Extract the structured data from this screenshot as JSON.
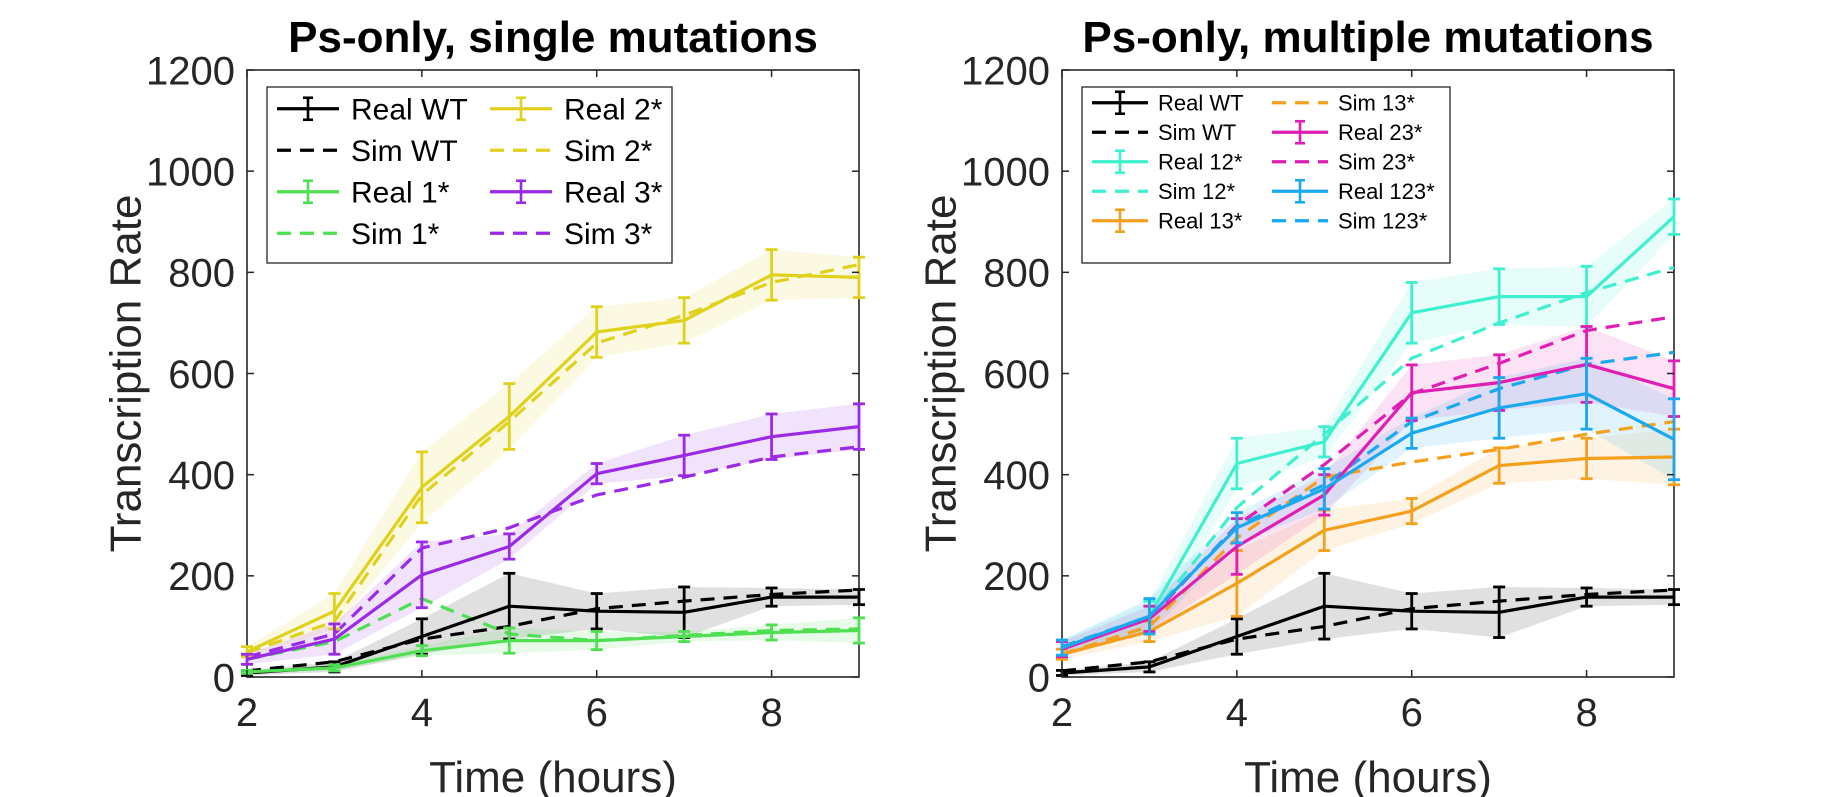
{
  "chart_data": [
    {
      "type": "line",
      "title": "Ps-only, single mutations",
      "xlabel": "Time (hours)",
      "ylabel": "Transcription Rate",
      "xlim": [
        2,
        9
      ],
      "ylim": [
        0,
        1200
      ],
      "xticks": [
        "2",
        "4",
        "6",
        "8"
      ],
      "yticks": [
        "0",
        "200",
        "400",
        "600",
        "800",
        "1000",
        "1200"
      ],
      "grid": false,
      "legend": {
        "placement": "top-left",
        "columns": 2
      },
      "series": [
        {
          "name": "Real WT",
          "kind": "real",
          "color": "#000000",
          "x": [
            2,
            3,
            4,
            5,
            6,
            7,
            8,
            9
          ],
          "y": [
            8,
            20,
            80,
            140,
            130,
            128,
            158,
            158
          ],
          "err": [
            5,
            10,
            35,
            65,
            35,
            50,
            18,
            15
          ]
        },
        {
          "name": "Sim WT",
          "kind": "sim",
          "color": "#000000",
          "x": [
            2,
            3,
            4,
            5,
            6,
            7,
            8,
            9
          ],
          "y": [
            12,
            30,
            75,
            100,
            135,
            150,
            163,
            172
          ]
        },
        {
          "name": "Real 1*",
          "kind": "real",
          "color": "#4fe052",
          "x": [
            2,
            3,
            4,
            5,
            6,
            7,
            8,
            9
          ],
          "y": [
            10,
            18,
            52,
            72,
            72,
            80,
            88,
            92
          ],
          "err": [
            3,
            6,
            10,
            25,
            18,
            10,
            15,
            25
          ]
        },
        {
          "name": "Sim 1*",
          "kind": "sim",
          "color": "#4fe052",
          "x": [
            2,
            3,
            4,
            5,
            6,
            7,
            8,
            9
          ],
          "y": [
            35,
            70,
            155,
            85,
            72,
            82,
            92,
            95
          ]
        },
        {
          "name": "Real 2*",
          "kind": "real",
          "color": "#e0d11c",
          "x": [
            2,
            3,
            4,
            5,
            6,
            7,
            8,
            9
          ],
          "y": [
            50,
            130,
            375,
            515,
            682,
            705,
            795,
            790
          ],
          "err": [
            10,
            35,
            70,
            65,
            50,
            45,
            50,
            40
          ]
        },
        {
          "name": "Sim 2*",
          "kind": "sim",
          "color": "#e0d11c",
          "x": [
            2,
            3,
            4,
            5,
            6,
            7,
            8,
            9
          ],
          "y": [
            48,
            110,
            360,
            505,
            660,
            715,
            780,
            815
          ]
        },
        {
          "name": "Real 3*",
          "kind": "real",
          "color": "#9a2ae6",
          "x": [
            2,
            3,
            4,
            5,
            6,
            7,
            8,
            9
          ],
          "y": [
            35,
            75,
            202,
            258,
            402,
            438,
            475,
            495
          ],
          "err": [
            10,
            30,
            65,
            25,
            20,
            40,
            45,
            45
          ]
        },
        {
          "name": "Sim 3*",
          "kind": "sim",
          "color": "#9a2ae6",
          "x": [
            2,
            3,
            4,
            5,
            6,
            7,
            8,
            9
          ],
          "y": [
            40,
            85,
            255,
            295,
            360,
            395,
            435,
            455
          ]
        }
      ]
    },
    {
      "type": "line",
      "title": "Ps-only, multiple mutations",
      "xlabel": "Time (hours)",
      "ylabel": "Transcription Rate",
      "xlim": [
        2,
        9
      ],
      "ylim": [
        0,
        1200
      ],
      "xticks": [
        "2",
        "4",
        "6",
        "8"
      ],
      "yticks": [
        "0",
        "200",
        "400",
        "600",
        "800",
        "1000",
        "1200"
      ],
      "grid": false,
      "legend": {
        "placement": "top-left",
        "columns": 2
      },
      "series": [
        {
          "name": "Real WT",
          "kind": "real",
          "color": "#000000",
          "x": [
            2,
            3,
            4,
            5,
            6,
            7,
            8,
            9
          ],
          "y": [
            8,
            20,
            80,
            140,
            130,
            128,
            158,
            158
          ],
          "err": [
            5,
            10,
            35,
            65,
            35,
            50,
            18,
            15
          ]
        },
        {
          "name": "Sim WT",
          "kind": "sim",
          "color": "#000000",
          "x": [
            2,
            3,
            4,
            5,
            6,
            7,
            8,
            9
          ],
          "y": [
            12,
            30,
            75,
            100,
            135,
            150,
            163,
            172
          ]
        },
        {
          "name": "Real 12*",
          "kind": "real",
          "color": "#3ff0d0",
          "x": [
            2,
            3,
            4,
            5,
            6,
            7,
            8,
            9
          ],
          "y": [
            58,
            120,
            422,
            465,
            720,
            752,
            752,
            910
          ],
          "err": [
            15,
            30,
            50,
            30,
            60,
            55,
            60,
            35
          ]
        },
        {
          "name": "Sim 12*",
          "kind": "sim",
          "color": "#3ff0d0",
          "x": [
            2,
            3,
            4,
            5,
            6,
            7,
            8,
            9
          ],
          "y": [
            60,
            115,
            335,
            480,
            630,
            700,
            760,
            810
          ]
        },
        {
          "name": "Real 13*",
          "kind": "real",
          "color": "#f5a01c",
          "x": [
            2,
            3,
            4,
            5,
            6,
            7,
            8,
            9
          ],
          "y": [
            45,
            90,
            185,
            290,
            328,
            418,
            432,
            435
          ],
          "err": [
            10,
            20,
            65,
            40,
            25,
            35,
            40,
            55
          ]
        },
        {
          "name": "Sim 13*",
          "kind": "sim",
          "color": "#f5a01c",
          "x": [
            2,
            3,
            4,
            5,
            6,
            7,
            8,
            9
          ],
          "y": [
            45,
            100,
            275,
            395,
            425,
            450,
            480,
            505
          ]
        },
        {
          "name": "Real 23*",
          "kind": "real",
          "color": "#e01eb4",
          "x": [
            2,
            3,
            4,
            5,
            6,
            7,
            8,
            9
          ],
          "y": [
            55,
            115,
            258,
            360,
            562,
            582,
            618,
            570
          ],
          "err": [
            15,
            25,
            55,
            40,
            55,
            55,
            75,
            55
          ]
        },
        {
          "name": "Sim 23*",
          "kind": "sim",
          "color": "#e01eb4",
          "x": [
            2,
            3,
            4,
            5,
            6,
            7,
            8,
            9
          ],
          "y": [
            60,
            115,
            300,
            420,
            560,
            620,
            685,
            712
          ]
        },
        {
          "name": "Real 123*",
          "kind": "real",
          "color": "#1aa8ee",
          "x": [
            2,
            3,
            4,
            5,
            6,
            7,
            8,
            9
          ],
          "y": [
            58,
            120,
            295,
            372,
            482,
            532,
            560,
            470
          ],
          "err": [
            15,
            35,
            30,
            40,
            30,
            60,
            70,
            80
          ]
        },
        {
          "name": "Sim 123*",
          "kind": "sim",
          "color": "#1aa8ee",
          "x": [
            2,
            3,
            4,
            5,
            6,
            7,
            8,
            9
          ],
          "y": [
            60,
            120,
            298,
            380,
            505,
            570,
            618,
            642
          ]
        }
      ]
    }
  ]
}
